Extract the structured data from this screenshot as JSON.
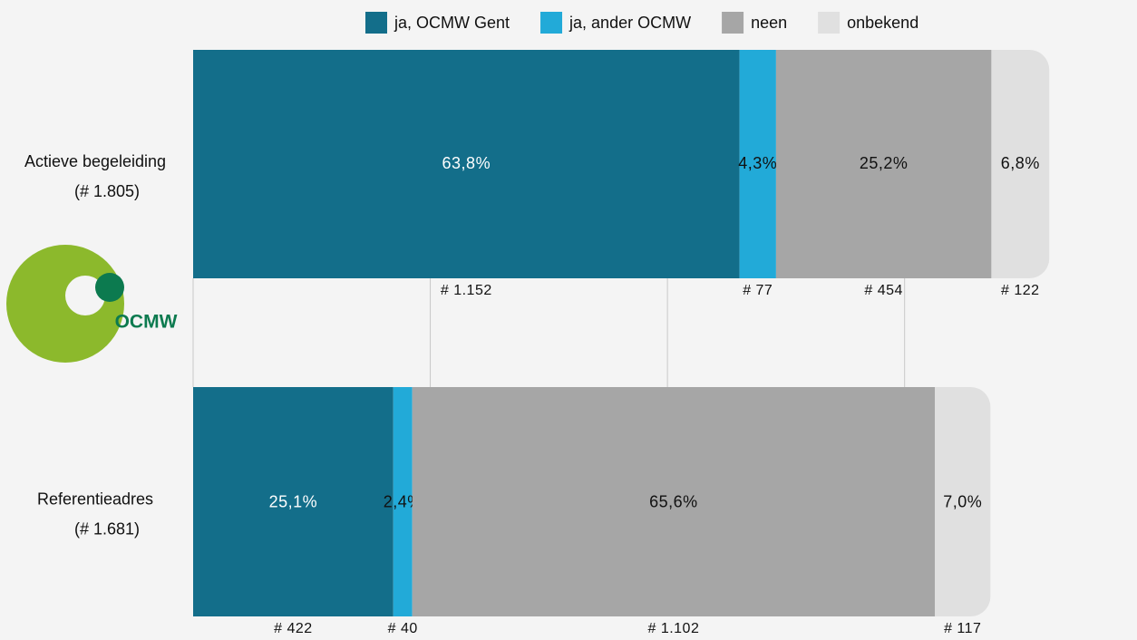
{
  "chart_data": {
    "type": "stacked-bar",
    "orientation": "horizontal",
    "categories": [
      "Actieve begeleiding",
      "Referentieadres"
    ],
    "category_counts": [
      "(# 1.805)",
      "(# 1.681)"
    ],
    "series": [
      {
        "name": "ja, OCMW Gent",
        "color": "#136e8a",
        "values": [
          63.8,
          25.1
        ],
        "value_labels": [
          "63,8%",
          "25,1%"
        ],
        "counts": [
          1152,
          422
        ],
        "count_labels": [
          "# 1.152",
          "# 422"
        ]
      },
      {
        "name": "ja, ander OCMW",
        "color": "#22aad8",
        "values": [
          4.3,
          2.4
        ],
        "value_labels": [
          "4,3%",
          "2,4%"
        ],
        "counts": [
          77,
          40
        ],
        "count_labels": [
          "# 77",
          "# 40"
        ]
      },
      {
        "name": "neen",
        "color": "#a6a6a6",
        "values": [
          25.2,
          65.6
        ],
        "value_labels": [
          "25,2%",
          "65,6%"
        ],
        "counts": [
          454,
          1102
        ],
        "count_labels": [
          "# 454",
          "# 1.102"
        ]
      },
      {
        "name": "onbekend",
        "color": "#e0e0e0",
        "values": [
          6.8,
          7.0
        ],
        "value_labels": [
          "6,8%",
          "7,0%"
        ],
        "counts": [
          122,
          117
        ],
        "count_labels": [
          "# 122",
          "# 117"
        ]
      }
    ],
    "xlim": [
      0,
      1990
    ],
    "xticks": [
      0,
      500,
      1000,
      1500
    ],
    "grid": true,
    "legend": "top",
    "logo": {
      "text": "OCMW"
    }
  }
}
